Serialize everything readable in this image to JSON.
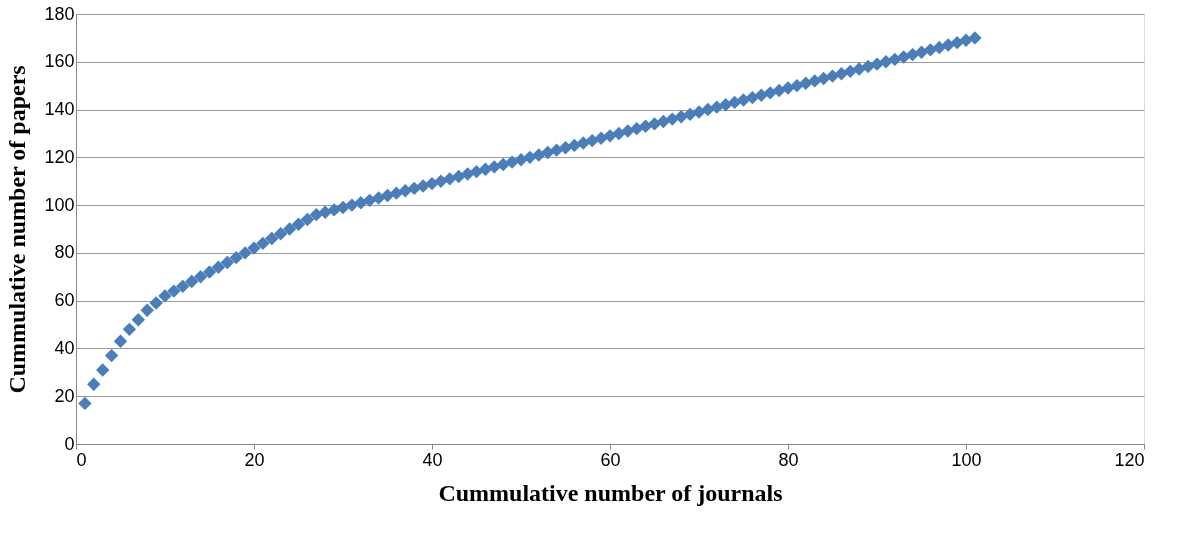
{
  "chart_data": {
    "type": "scatter",
    "xlabel": "Cummulative number of journals",
    "ylabel": "Cummulative number of papers",
    "x": [
      1,
      2,
      3,
      4,
      5,
      6,
      7,
      8,
      9,
      10,
      11,
      12,
      13,
      14,
      15,
      16,
      17,
      18,
      19,
      20,
      21,
      22,
      23,
      24,
      25,
      26,
      27,
      28,
      29,
      30,
      31,
      32,
      33,
      34,
      35,
      36,
      37,
      38,
      39,
      40,
      41,
      42,
      43,
      44,
      45,
      46,
      47,
      48,
      49,
      50,
      51,
      52,
      53,
      54,
      55,
      56,
      57,
      58,
      59,
      60,
      61,
      62,
      63,
      64,
      65,
      66,
      67,
      68,
      69,
      70,
      71,
      72,
      73,
      74,
      75,
      76,
      77,
      78,
      79,
      80,
      81,
      82,
      83,
      84,
      85,
      86,
      87,
      88,
      89,
      90,
      91,
      92,
      93,
      94,
      95,
      96,
      97,
      98,
      99,
      100,
      101
    ],
    "series": [
      {
        "color": "#4a7ebb",
        "values": [
          17,
          25,
          31,
          37,
          43,
          48,
          52,
          56,
          59,
          62,
          64,
          66,
          68,
          70,
          72,
          74,
          76,
          78,
          80,
          82,
          84,
          86,
          88,
          90,
          92,
          94,
          96,
          97,
          98,
          99,
          100,
          101,
          102,
          103,
          104,
          105,
          106,
          107,
          108,
          109,
          110,
          111,
          112,
          113,
          114,
          115,
          116,
          117,
          118,
          119,
          120,
          121,
          122,
          123,
          124,
          125,
          126,
          127,
          128,
          129,
          130,
          131,
          132,
          133,
          134,
          135,
          136,
          137,
          138,
          139,
          140,
          141,
          142,
          143,
          144,
          145,
          146,
          147,
          148,
          149,
          150,
          151,
          152,
          153,
          154,
          155,
          156,
          157,
          158,
          159,
          160,
          161,
          162,
          163,
          164,
          165,
          166,
          167,
          168,
          169,
          170
        ]
      }
    ],
    "xlim": [
      0,
      120
    ],
    "xticks": [
      0,
      20,
      40,
      60,
      80,
      100,
      120
    ],
    "ylim": [
      0,
      180
    ],
    "yticks": [
      0,
      20,
      40,
      60,
      80,
      100,
      120,
      140,
      160,
      180
    ],
    "grid": "y",
    "marker": "diamond"
  }
}
